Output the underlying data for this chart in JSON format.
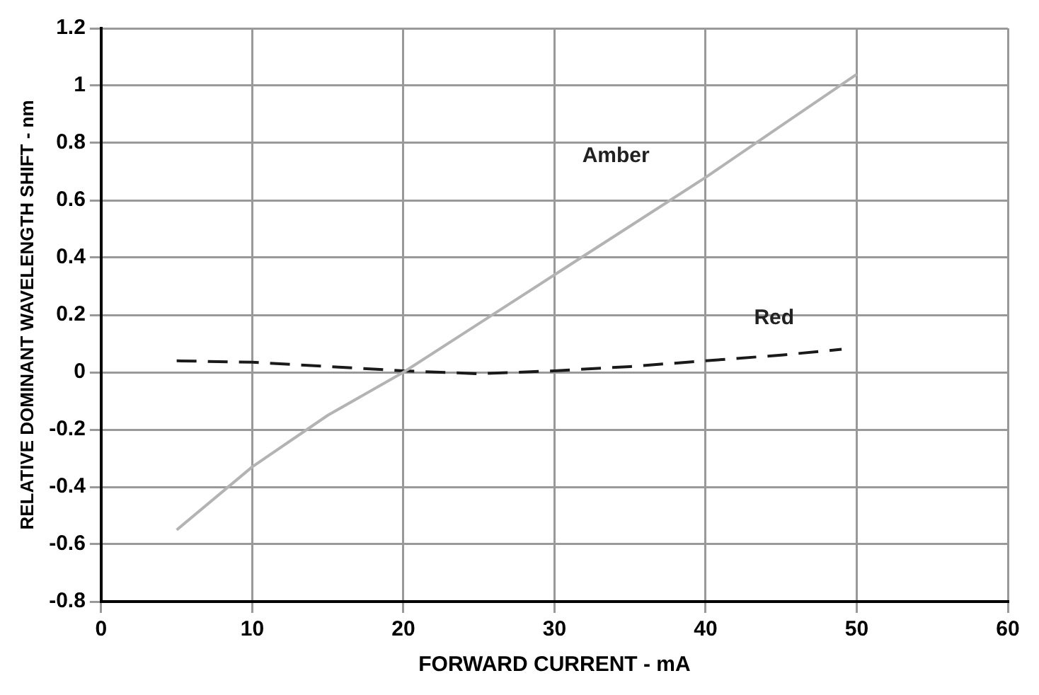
{
  "chart_data": {
    "type": "line",
    "xlabel": "FORWARD CURRENT - mA",
    "ylabel": "RELATIVE DOMINANT WAVELENGTH SHIFT - nm",
    "xlim": [
      0,
      60
    ],
    "xticks": [
      0,
      10,
      20,
      30,
      40,
      50,
      60
    ],
    "ylim": [
      -0.8,
      1.2
    ],
    "yticks": [
      -0.8,
      -0.6,
      -0.4,
      -0.2,
      0,
      0.2,
      0.4,
      0.6,
      0.8,
      1,
      1.2
    ],
    "grid": true,
    "legend": false,
    "marker": "none",
    "series": [
      {
        "name": "Amber",
        "color": "#b3b3b3",
        "line_style": "solid",
        "x": [
          5,
          10,
          15,
          20,
          25,
          30,
          35,
          40,
          45,
          50
        ],
        "values": [
          -0.55,
          -0.33,
          -0.15,
          0,
          0.17,
          0.34,
          0.51,
          0.68,
          0.86,
          1.04
        ]
      },
      {
        "name": "Red",
        "color": "#1a1a1a",
        "line_style": "dashed",
        "x": [
          5,
          10,
          15,
          20,
          25,
          30,
          35,
          40,
          45,
          49
        ],
        "values": [
          0.04,
          0.035,
          0.02,
          0.005,
          -0.005,
          0.005,
          0.02,
          0.04,
          0.06,
          0.08
        ]
      }
    ]
  }
}
